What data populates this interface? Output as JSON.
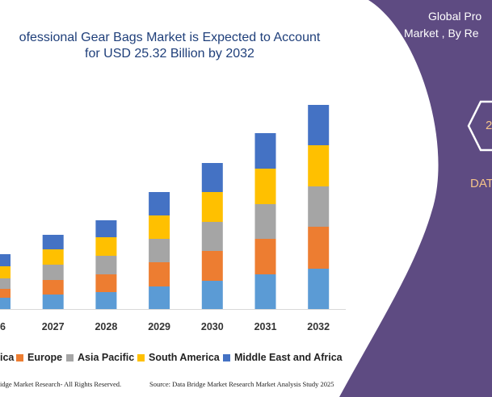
{
  "chart_data": {
    "type": "bar",
    "stacked": true,
    "title": [
      "ofessional Gear Bags Market is Expected to Account",
      "for USD 25.32 Billion by 2032"
    ],
    "categories": [
      "26",
      "2027",
      "2028",
      "2029",
      "2030",
      "2031",
      "2032"
    ],
    "series": [
      {
        "name": "ica",
        "color": "#5b9bd5",
        "values": [
          14,
          18,
          21,
          28,
          35,
          43,
          50
        ]
      },
      {
        "name": "Europe",
        "color": "#ed7d31",
        "values": [
          11,
          18,
          22,
          30,
          37,
          44,
          52
        ]
      },
      {
        "name": "Asia Pacific",
        "color": "#a5a5a5",
        "values": [
          13,
          19,
          23,
          29,
          36,
          43,
          50
        ]
      },
      {
        "name": "South America",
        "color": "#ffc000",
        "values": [
          15,
          19,
          23,
          29,
          37,
          44,
          51
        ]
      },
      {
        "name": "Middle East and Africa",
        "color": "#4472c4",
        "values": [
          15,
          18,
          21,
          29,
          36,
          44,
          50
        ]
      }
    ],
    "xlabel": "",
    "ylabel": "",
    "ylim": [
      0,
      270
    ],
    "grid": false,
    "legend_position": "bottom"
  },
  "side_panel": {
    "line1": "Global Pro",
    "line2": "Market , By Re",
    "badge": "2",
    "label": "DAT",
    "color": "#5e4b82"
  },
  "footer": {
    "left": "idge Market Research- All Rights Reserved.",
    "right": "Source: Data Bridge Market Research Market Analysis Study 2025"
  }
}
